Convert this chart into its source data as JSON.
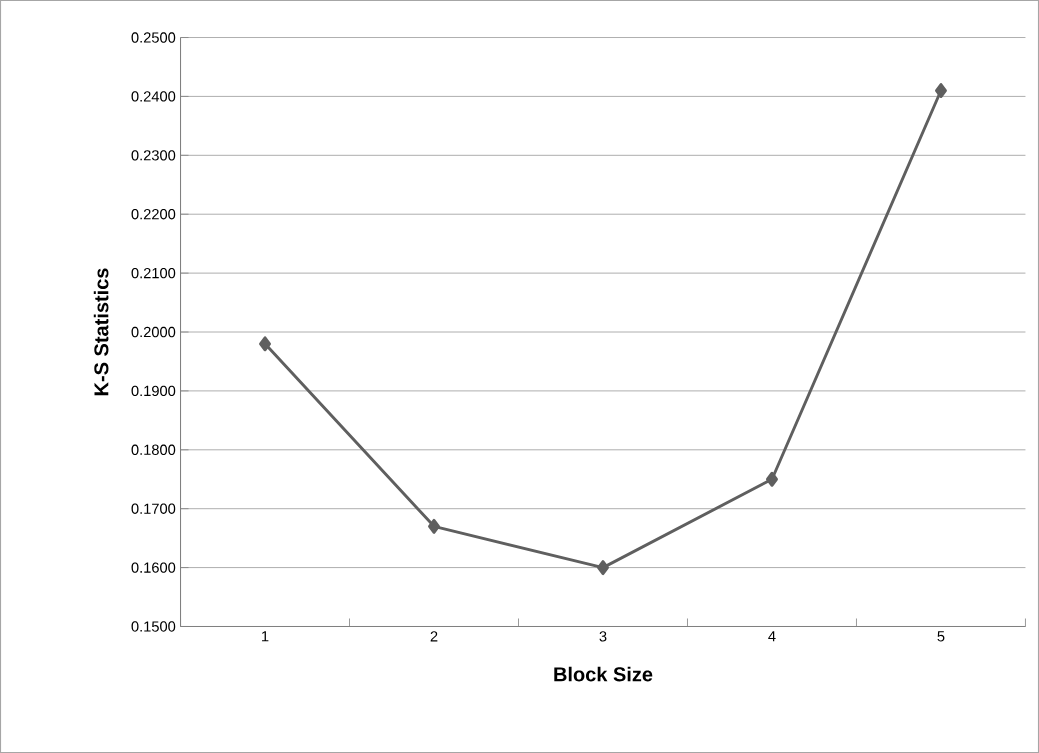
{
  "chart_data": {
    "type": "line",
    "xlabel": "Block Size",
    "ylabel": "K-S  Statistics",
    "categories": [
      "1",
      "2",
      "3",
      "4",
      "5"
    ],
    "series": [
      {
        "color": "#5f5f5f",
        "values": [
          0.198,
          0.167,
          0.16,
          0.175,
          0.241
        ]
      }
    ],
    "ylim": [
      0.15,
      0.25
    ],
    "yticks": [
      {
        "value": 0.15,
        "label": "0.1500"
      },
      {
        "value": 0.16,
        "label": "0.1600"
      },
      {
        "value": 0.17,
        "label": "0.1700"
      },
      {
        "value": 0.18,
        "label": "0.1800"
      },
      {
        "value": 0.19,
        "label": "0.1900"
      },
      {
        "value": 0.2,
        "label": "0.2000"
      },
      {
        "value": 0.21,
        "label": "0.2100"
      },
      {
        "value": 0.22,
        "label": "0.2200"
      },
      {
        "value": 0.23,
        "label": "0.2300"
      },
      {
        "value": 0.24,
        "label": "0.2400"
      },
      {
        "value": 0.25,
        "label": "0.2500"
      }
    ],
    "grid": "y",
    "marker": "diamond",
    "line_style": "solid"
  }
}
